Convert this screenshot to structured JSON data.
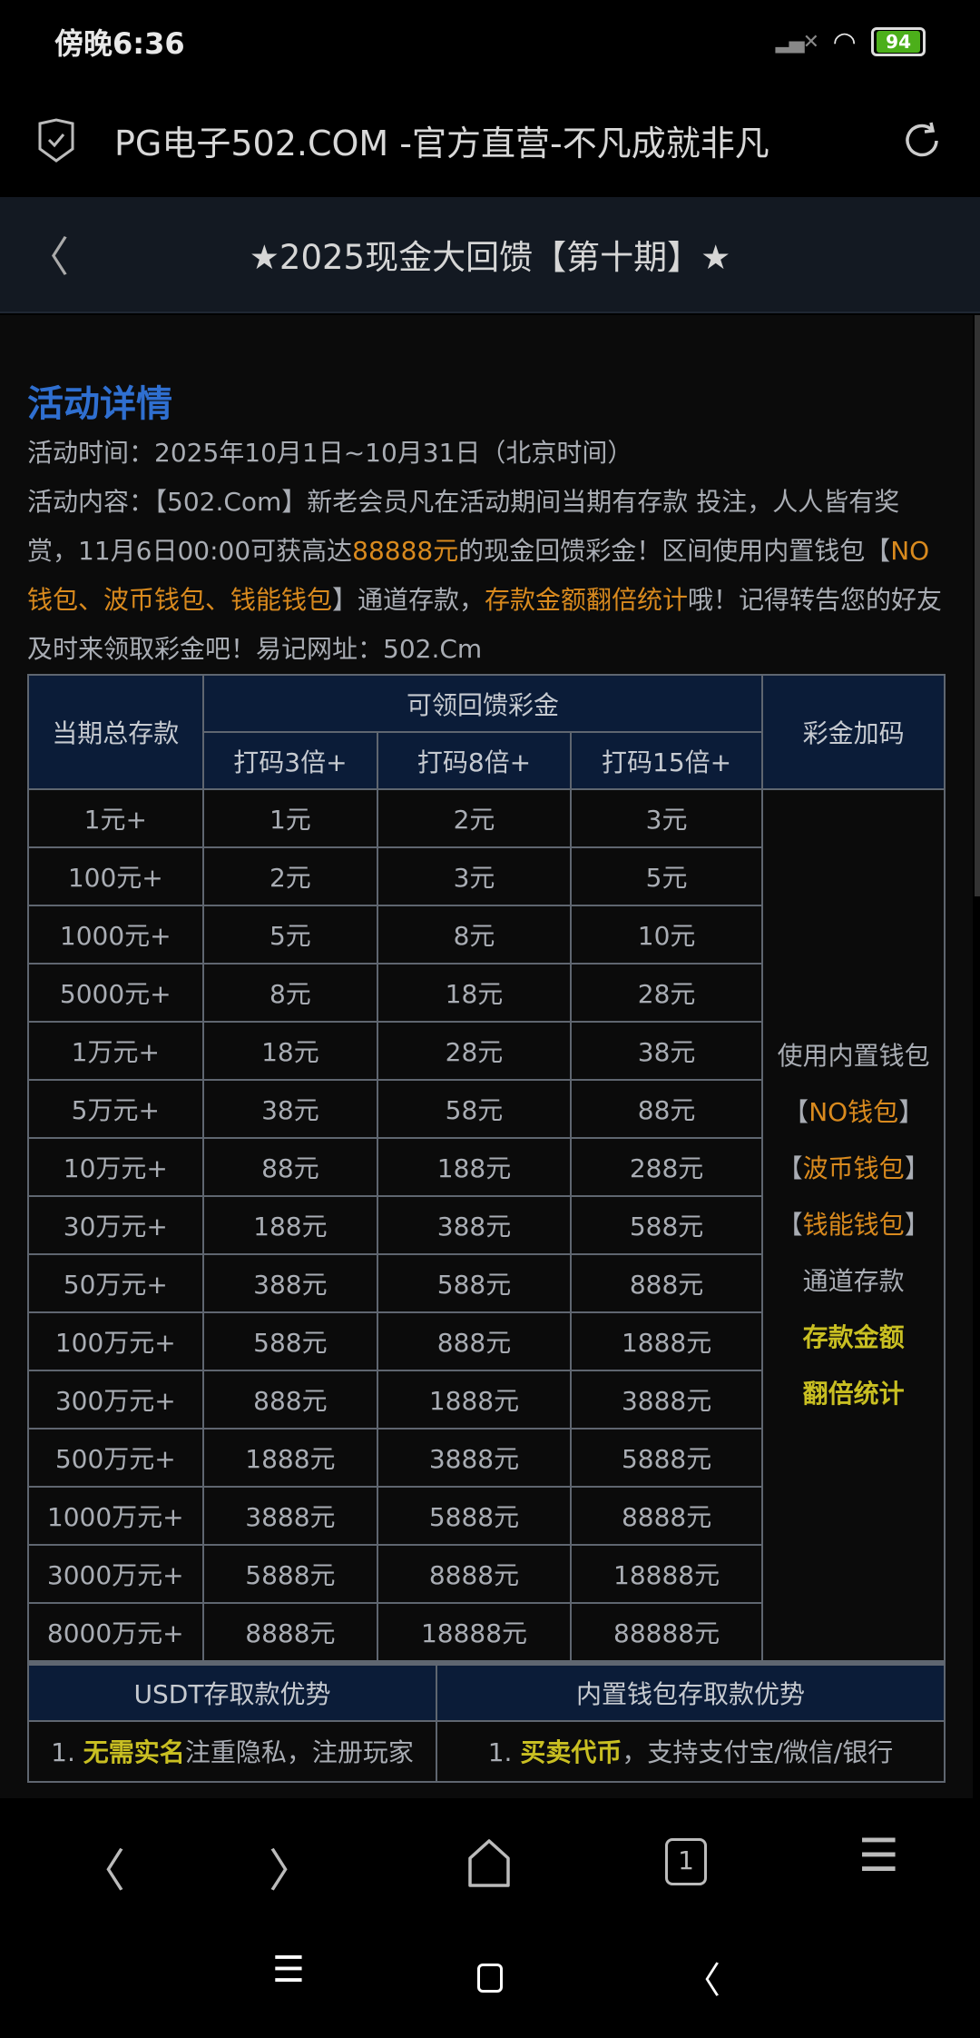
{
  "status": {
    "time": "傍晚6:36",
    "battery": "94"
  },
  "browser": {
    "url_title": "PG电子502.COM -官方直营-不凡成就非凡"
  },
  "header": {
    "title": "★2025现金大回馈【第十期】★"
  },
  "section": {
    "heading": "活动详情",
    "time_line": "活动时间：2025年10月1日~10月31日（北京时间）",
    "c1": "活动内容：【502.Com】新老会员凡在活动期间当期有存款 投注，人人皆有奖赏，11月6日00:00可获高达",
    "c2": "88888元",
    "c3": "的现金回馈彩金！区间使用内置钱包【",
    "c4": "NO钱包、波币钱包、钱能钱包",
    "c5": "】通道存款，",
    "c6": "存款金额翻倍统计",
    "c7": "哦！记得转告您的好友及时来领取彩金吧！易记网址：502.Cm"
  },
  "table": {
    "h_deposit": "当期总存款",
    "h_bonus": "可领回馈彩金",
    "h_extra": "彩金加码",
    "h_sub": [
      "打码3倍+",
      "打码8倍+",
      "打码15倍+"
    ],
    "rows": [
      [
        "1元+",
        "1元",
        "2元",
        "3元"
      ],
      [
        "100元+",
        "2元",
        "3元",
        "5元"
      ],
      [
        "1000元+",
        "5元",
        "8元",
        "10元"
      ],
      [
        "5000元+",
        "8元",
        "18元",
        "28元"
      ],
      [
        "1万元+",
        "18元",
        "28元",
        "38元"
      ],
      [
        "5万元+",
        "38元",
        "58元",
        "88元"
      ],
      [
        "10万元+",
        "88元",
        "188元",
        "288元"
      ],
      [
        "30万元+",
        "188元",
        "388元",
        "588元"
      ],
      [
        "50万元+",
        "388元",
        "588元",
        "888元"
      ],
      [
        "100万元+",
        "588元",
        "888元",
        "1888元"
      ],
      [
        "300万元+",
        "888元",
        "1888元",
        "3888元"
      ],
      [
        "500万元+",
        "1888元",
        "3888元",
        "5888元"
      ],
      [
        "1000万元+",
        "3888元",
        "5888元",
        "8888元"
      ],
      [
        "3000万元+",
        "5888元",
        "8888元",
        "18888元"
      ],
      [
        "8000万元+",
        "8888元",
        "18888元",
        "88888元"
      ]
    ],
    "extra": {
      "l1": "使用内置钱包",
      "w1": "NO钱包",
      "w2": "波币钱包",
      "w3": "钱能钱包",
      "lb": "【",
      "rb": "】",
      "l5": "通道存款",
      "l6": "存款金额",
      "l7": "翻倍统计"
    }
  },
  "table2": {
    "h1": "USDT存取款优势",
    "h2": "内置钱包存取款优势",
    "r1a": "1. ",
    "r1b": "无需实名",
    "r1c": "注重隐私，注册玩家",
    "r2a": "1. ",
    "r2b": "买卖代币",
    "r2c": "，支持支付宝/微信/银行"
  },
  "toolbar": {
    "tabs_count": "1"
  },
  "colors": {
    "accent_orange": "#d98a1e",
    "accent_yellow": "#c9bf22",
    "heading_blue": "#2f6fd0",
    "table_header": "#0b1c38"
  }
}
